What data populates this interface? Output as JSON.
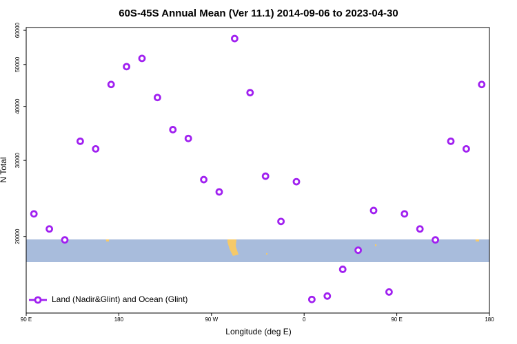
{
  "chart_data": {
    "type": "scatter",
    "title": "60S-45S Annual Mean (Ver 11.1)   2014-09-06 to 2023-04-30",
    "x_label": "Longitude (deg E)",
    "y_label": "N Total",
    "xlim": [
      90,
      540
    ],
    "ylim": [
      13300,
      60900
    ],
    "ylog": true,
    "xticks": [
      {
        "value": 90,
        "label": "90 E"
      },
      180,
      {
        "value": 270,
        "label": "90 W"
      },
      {
        "value": 360,
        "label": "0"
      },
      {
        "value": 450,
        "label": "90 E"
      },
      {
        "value": 540,
        "label": "180"
      }
    ],
    "yticks": [
      20000,
      30000,
      40000,
      50000,
      60000
    ],
    "legend": "bottomleft",
    "series": [
      {
        "name": "Land (Nadir&Glint) and Ocean (Glint)",
        "color": "#a020f0",
        "x": [
          97.5,
          112.5,
          127.5,
          142.5,
          157.5,
          172.5,
          187.5,
          202.5,
          217.5,
          232.5,
          247.5,
          262.5,
          277.5,
          292.5,
          307.5,
          322.5,
          337.5,
          352.5,
          367.5,
          382.5,
          397.5,
          412.5,
          427.5,
          442.5,
          457.5,
          472.5,
          487.5,
          502.5,
          517.5,
          532.5
        ],
        "values": [
          22560,
          20820,
          19640,
          33220,
          31900,
          44960,
          49440,
          51660,
          41940,
          35340,
          33720,
          27080,
          25360,
          57420,
          43040,
          27580,
          21670,
          26780,
          14300,
          14560,
          16790,
          18590,
          22970,
          14880,
          22560,
          20820,
          19640,
          33220,
          31900,
          44960
        ]
      }
    ]
  }
}
